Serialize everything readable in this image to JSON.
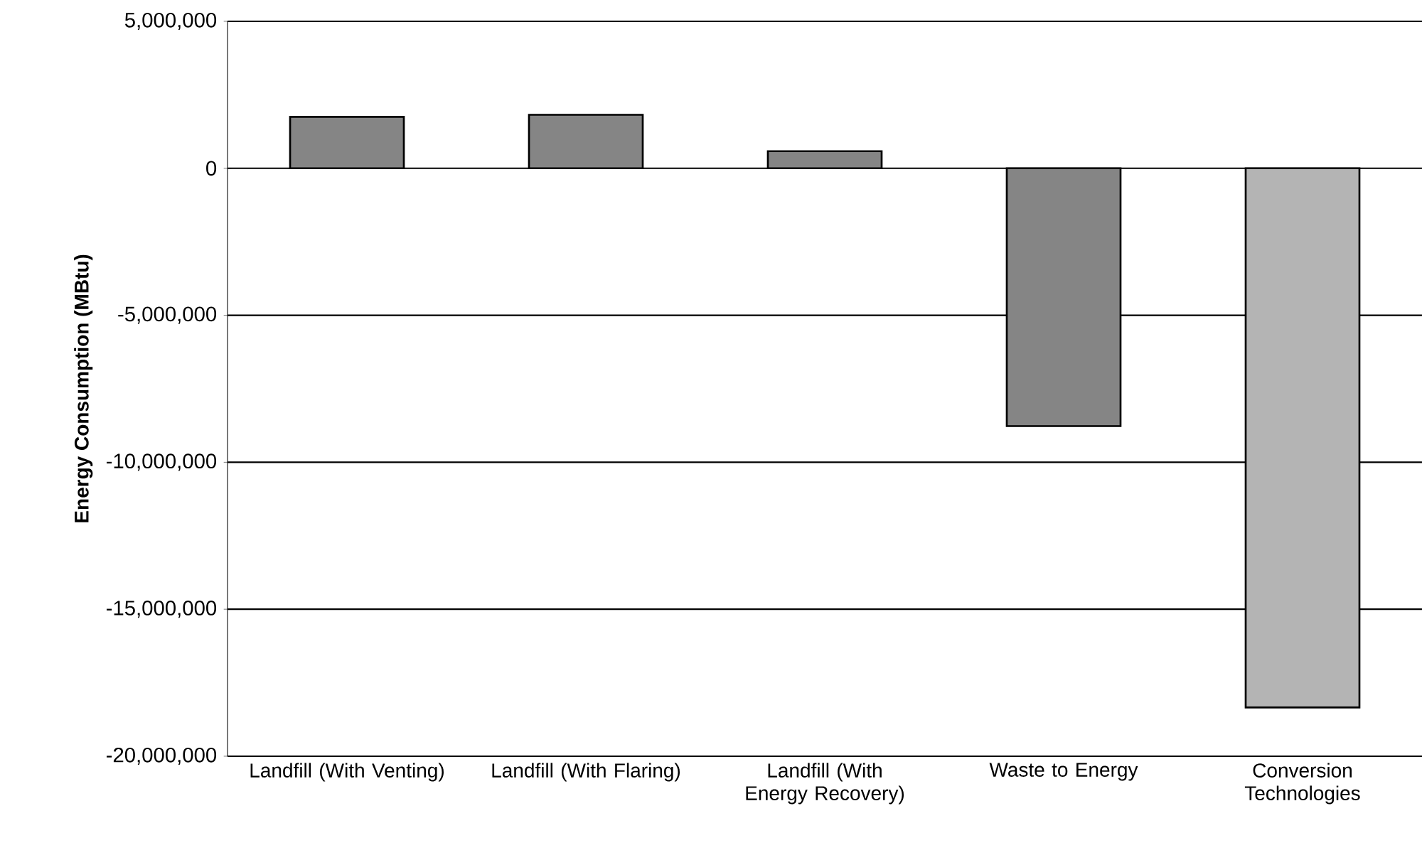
{
  "chart_data": {
    "type": "bar",
    "ylabel": "Energy Consumption (MBtu)",
    "categories": [
      "Landfill (With Venting)",
      "Landfill (With Flaring)",
      "Landfill (With Energy Recovery)",
      "Waste to Energy",
      "Conversion Technologies"
    ],
    "values": [
      1750000,
      1820000,
      580000,
      -8770000,
      -18340000
    ],
    "colors": [
      "#858585",
      "#858585",
      "#858585",
      "#858585",
      "#b4b4b4"
    ],
    "ylim": [
      -20000000,
      5000000
    ],
    "yticks": [
      {
        "value": -20000000,
        "label": "-20,000,000"
      },
      {
        "value": -15000000,
        "label": "-15,000,000"
      },
      {
        "value": -10000000,
        "label": "-10,000,000"
      },
      {
        "value": -5000000,
        "label": "-5,000,000"
      },
      0,
      {
        "value": 5000000,
        "label": "5,000,000"
      }
    ],
    "grid": "y"
  }
}
